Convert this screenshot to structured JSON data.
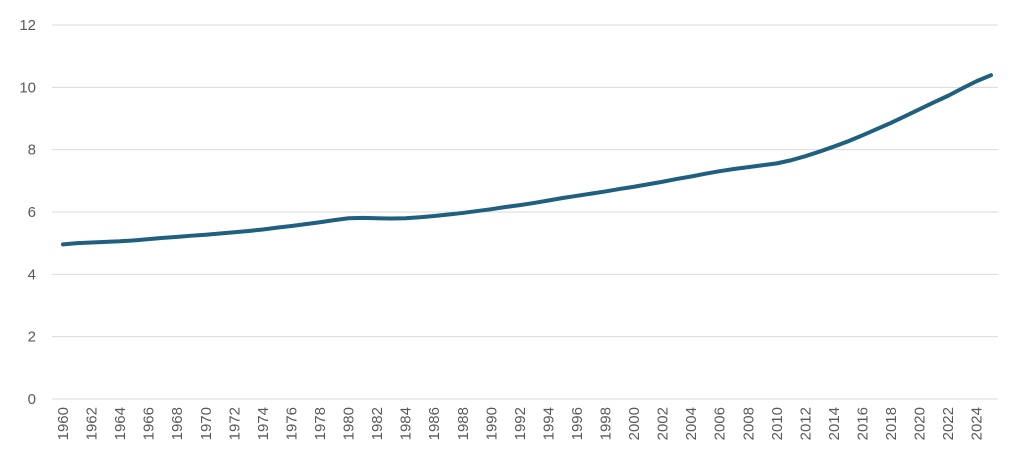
{
  "chart_data": {
    "type": "line",
    "title": "",
    "xlabel": "",
    "ylabel": "",
    "ylim": [
      0,
      12
    ],
    "y_ticks": [
      0,
      2,
      4,
      6,
      8,
      10,
      12
    ],
    "xlim": [
      1960,
      2025
    ],
    "x_tick_labels": [
      "1960",
      "1962",
      "1964",
      "1966",
      "1968",
      "1970",
      "1972",
      "1974",
      "1976",
      "1978",
      "1980",
      "1982",
      "1984",
      "1986",
      "1988",
      "1990",
      "1992",
      "1994",
      "1996",
      "1998",
      "2000",
      "2002",
      "2004",
      "2006",
      "2008",
      "2010",
      "2012",
      "2014",
      "2016",
      "2018",
      "2020",
      "2022",
      "2024"
    ],
    "grid": "horizontal",
    "legend": "none",
    "line_color": "#1f5f7f",
    "series": [
      {
        "x": [
          1960,
          1961,
          1962,
          1963,
          1964,
          1965,
          1966,
          1967,
          1968,
          1969,
          1970,
          1971,
          1972,
          1973,
          1974,
          1975,
          1976,
          1977,
          1978,
          1979,
          1980,
          1981,
          1982,
          1983,
          1984,
          1985,
          1986,
          1987,
          1988,
          1989,
          1990,
          1991,
          1992,
          1993,
          1994,
          1995,
          1996,
          1997,
          1998,
          1999,
          2000,
          2001,
          2002,
          2003,
          2004,
          2005,
          2006,
          2007,
          2008,
          2009,
          2010,
          2011,
          2012,
          2013,
          2014,
          2015,
          2016,
          2017,
          2018,
          2019,
          2020,
          2021,
          2022,
          2023,
          2024,
          2025
        ],
        "values": [
          4.96,
          5.0,
          5.02,
          5.04,
          5.06,
          5.09,
          5.13,
          5.17,
          5.2,
          5.24,
          5.27,
          5.31,
          5.35,
          5.39,
          5.44,
          5.5,
          5.55,
          5.61,
          5.67,
          5.74,
          5.8,
          5.81,
          5.8,
          5.79,
          5.8,
          5.83,
          5.87,
          5.92,
          5.97,
          6.03,
          6.09,
          6.16,
          6.22,
          6.29,
          6.37,
          6.45,
          6.52,
          6.59,
          6.66,
          6.74,
          6.81,
          6.89,
          6.97,
          7.06,
          7.14,
          7.23,
          7.31,
          7.38,
          7.44,
          7.5,
          7.56,
          7.66,
          7.79,
          7.94,
          8.1,
          8.27,
          8.46,
          8.66,
          8.86,
          9.08,
          9.3,
          9.52,
          9.73,
          9.97,
          10.2,
          10.39
        ]
      }
    ]
  }
}
